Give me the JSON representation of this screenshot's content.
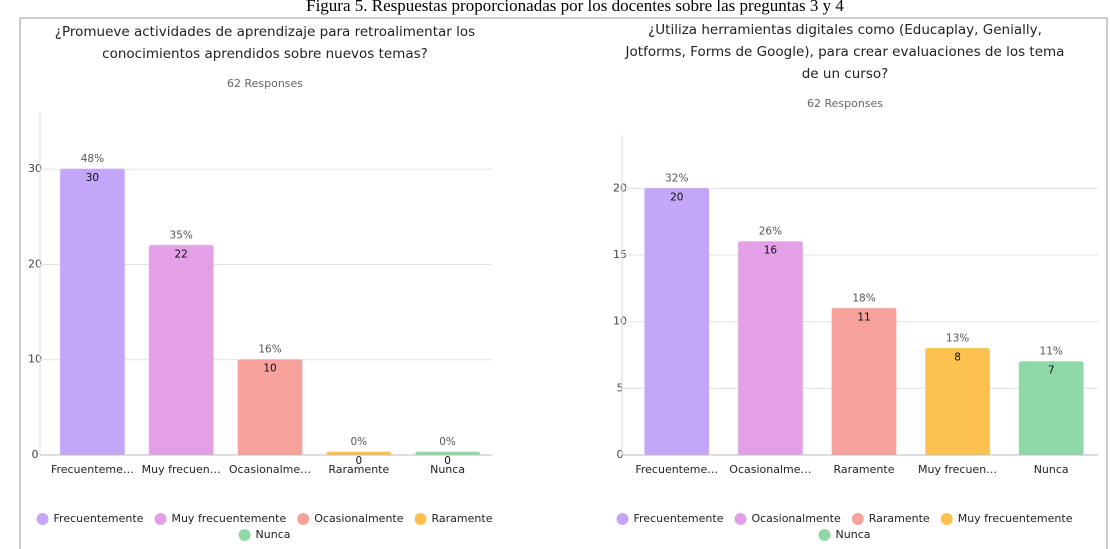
{
  "caption": "Figura 5. Respuestas proporcionadas por los docentes sobre las preguntas 3 y 4",
  "chart_data": [
    {
      "type": "bar",
      "title": [
        "¿Promueve actividades de aprendizaje para retroalimentar los",
        "conocimientos aprendidos sobre nuevos temas?"
      ],
      "subtitle": "62 Responses",
      "categories": [
        "Frecuenteme…",
        "Muy frecuen…",
        "Ocasionalme…",
        "Raramente",
        "Nunca"
      ],
      "values": [
        30,
        22,
        10,
        0,
        0
      ],
      "percent_labels": [
        "48%",
        "35%",
        "16%",
        "0%",
        "0%"
      ],
      "colors": [
        "#c4a6f8",
        "#e3a0e6",
        "#f7a19c",
        "#fdc14e",
        "#8fd9a8"
      ],
      "legend": [
        "Frecuentemente",
        "Muy frecuentemente",
        "Ocasionalmente",
        "Raramente",
        "Nunca"
      ],
      "ylim": [
        0,
        36
      ],
      "yticks": [
        0,
        10,
        20,
        30
      ],
      "grid": true
    },
    {
      "type": "bar",
      "title": [
        "¿Utiliza herramientas digitales como (Educaplay, Genially,",
        "Jotforms, Forms de Google), para crear evaluaciones de los tema",
        "de un curso?"
      ],
      "subtitle": "62 Responses",
      "categories": [
        "Frecuenteme…",
        "Ocasionalme…",
        "Raramente",
        "Muy frecuen…",
        "Nunca"
      ],
      "values": [
        20,
        16,
        11,
        8,
        7
      ],
      "percent_labels": [
        "32%",
        "26%",
        "18%",
        "13%",
        "11%"
      ],
      "colors": [
        "#c4a6f8",
        "#e3a0e6",
        "#f7a19c",
        "#fdc14e",
        "#8fd9a8"
      ],
      "legend": [
        "Frecuentemente",
        "Ocasionalmente",
        "Raramente",
        "Muy frecuentemente",
        "Nunca"
      ],
      "ylim": [
        0,
        24
      ],
      "yticks": [
        0,
        5,
        10,
        15,
        20
      ],
      "grid": true
    }
  ]
}
